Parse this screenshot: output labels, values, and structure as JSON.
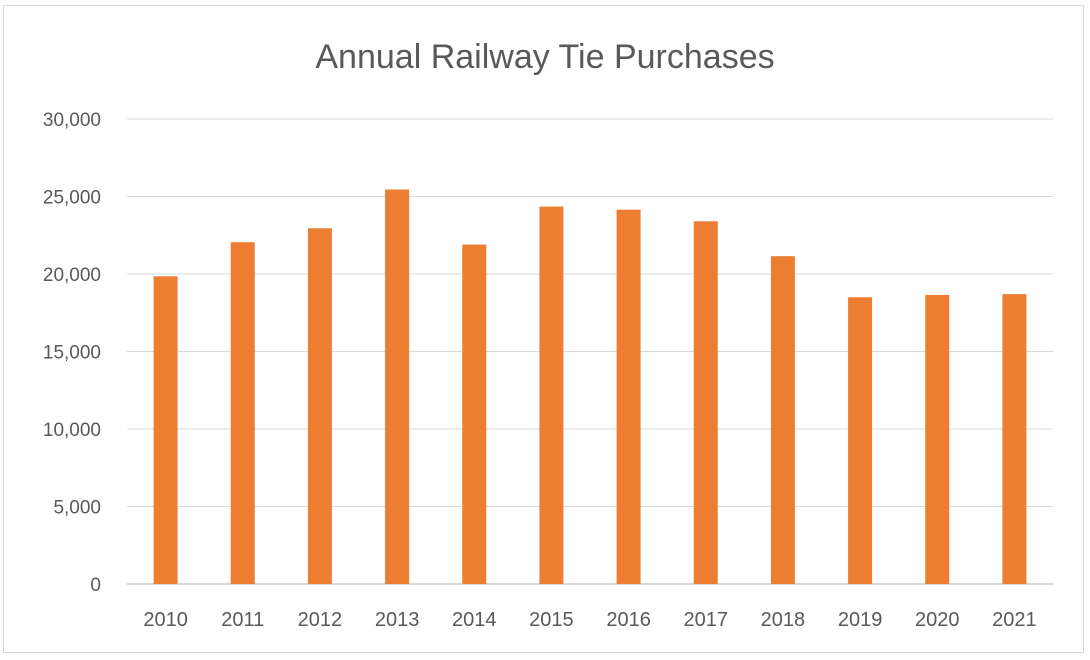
{
  "chart_data": {
    "type": "bar",
    "title": "Annual Railway Tie Purchases",
    "xlabel": "",
    "ylabel": "",
    "categories": [
      "2010",
      "2011",
      "2012",
      "2013",
      "2014",
      "2015",
      "2016",
      "2017",
      "2018",
      "2019",
      "2020",
      "2021"
    ],
    "values": [
      19850,
      22050,
      22950,
      25450,
      21900,
      24350,
      24150,
      23400,
      21150,
      18500,
      18650,
      18700
    ],
    "ylim": [
      0,
      30000
    ],
    "yticks": [
      0,
      5000,
      10000,
      15000,
      20000,
      25000,
      30000
    ],
    "ytick_labels": [
      "0",
      "5,000",
      "10,000",
      "15,000",
      "20,000",
      "25,000",
      "30,000"
    ],
    "grid": true,
    "legend": "none",
    "bar_color": "#ED7D31"
  }
}
